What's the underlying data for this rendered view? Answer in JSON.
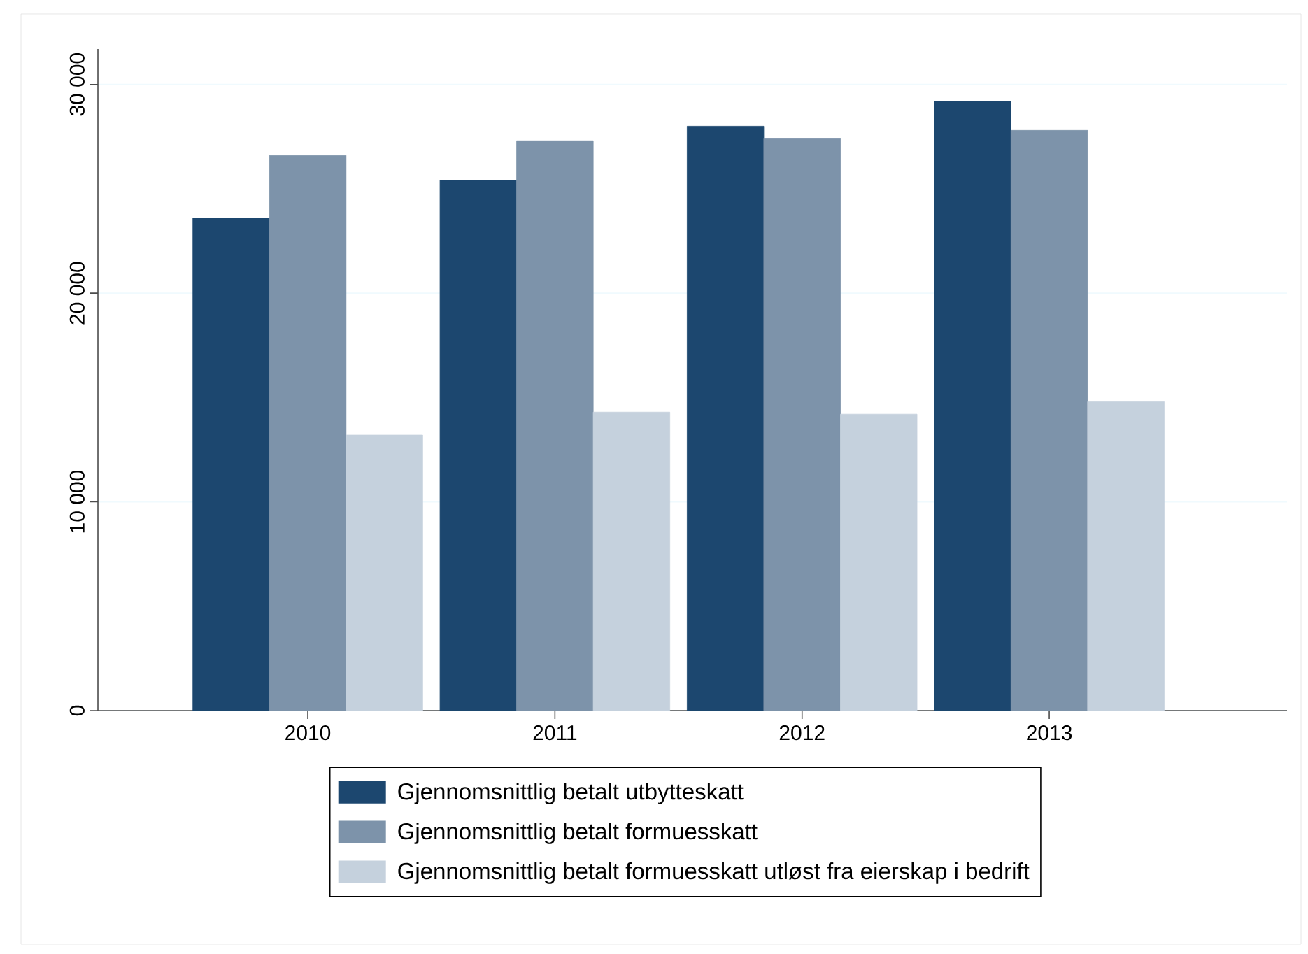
{
  "chart_data": {
    "type": "bar",
    "categories": [
      "2010",
      "2011",
      "2012",
      "2013"
    ],
    "series": [
      {
        "name": "Gjennomsnittlig betalt utbytteskatt",
        "color": "#1c476f",
        "values": [
          23600,
          25400,
          28000,
          29200
        ]
      },
      {
        "name": "Gjennomsnittlig betalt formuesskatt",
        "color": "#7d93aa",
        "values": [
          26600,
          27300,
          27400,
          27800
        ]
      },
      {
        "name": "Gjennomsnittlig betalt formuesskatt utløst fra eierskap i bedrift",
        "color": "#c5d1dd",
        "values": [
          13200,
          14300,
          14200,
          14800
        ]
      }
    ],
    "ylim": [
      0,
      31700
    ],
    "yticks": [
      0,
      {
        "value": 10000,
        "label": "10 000"
      },
      {
        "value": 20000,
        "label": "20 000"
      },
      {
        "value": 30000,
        "label": "30 000"
      }
    ],
    "grid": "y",
    "legend": "bottom"
  }
}
